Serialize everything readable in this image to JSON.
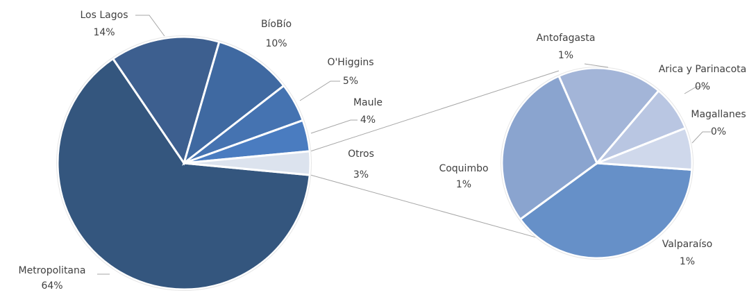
{
  "chart_data": [
    {
      "type": "pie",
      "categories": [
        "Metropolitana",
        "Los Lagos",
        "BíoBío",
        "O'Higgins",
        "Maule",
        "Otros"
      ],
      "values": [
        64,
        14,
        10,
        5,
        4,
        3
      ],
      "value_labels": [
        "64%",
        "14%",
        "10%",
        "5%",
        "4%",
        "3%"
      ],
      "colors": [
        "#34567e",
        "#3d5f8f",
        "#3f69a1",
        "#4573b1",
        "#4a7cc0",
        "#dce3ee"
      ]
    },
    {
      "type": "pie",
      "categories": [
        "Valparaíso",
        "Coquimbo",
        "Antofagasta",
        "Arica y Parinacota",
        "Magallanes"
      ],
      "values": [
        1.2,
        0.88,
        0.55,
        0.24,
        0.22
      ],
      "value_labels": [
        "1%",
        "1%",
        "1%",
        "0%",
        "0%"
      ],
      "colors": [
        "#6690c8",
        "#8aa4cf",
        "#a3b5d8",
        "#b9c6e2",
        "#cfd8eb"
      ]
    }
  ]
}
